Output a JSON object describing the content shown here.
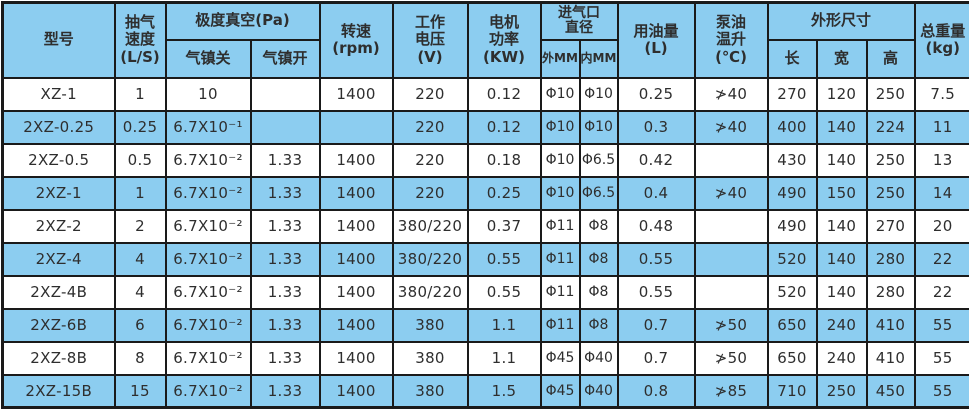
{
  "colors": {
    "row_alt_blue": "#8ccdf0",
    "row_white": "#ffffff",
    "grid_border": "#1a1a1a",
    "text": "#2e2e2e"
  },
  "chart_data": {
    "type": "table",
    "title": "",
    "header": {
      "model": "型号",
      "speed": "抽气\n速度\n(L/S)",
      "vacuum_group": "极度真空(Pa)",
      "gas_ballast_closed": "气镇关",
      "gas_ballast_open": "气镇开",
      "rpm": "转速\n(rpm)",
      "voltage": "工作\n电压\n(V)",
      "power": "电机\n功率\n(KW)",
      "inlet_group": "进气口\n直径",
      "inlet_outer": "外MM",
      "inlet_inner": "内MM",
      "oil": "用油量\n(L)",
      "oil_temp": "泵油\n温升\n(℃)",
      "dims_group": "外形尺寸",
      "dim_length": "长",
      "dim_width": "宽",
      "dim_height": "高",
      "weight": "总重量\n(kg)"
    },
    "columns": [
      "型号",
      "抽气速度(L/S)",
      "极度真空(Pa) 气镇关",
      "极度真空(Pa) 气镇开",
      "转速(rpm)",
      "工作电压(V)",
      "电机功率(KW)",
      "进气口直径 外MM",
      "进气口直径 内MM",
      "用油量(L)",
      "泵油温升(℃)",
      "外形尺寸 长",
      "外形尺寸 宽",
      "外形尺寸 高",
      "总重量(kg)"
    ],
    "rows": [
      [
        "XZ-1",
        "1",
        "10",
        "",
        "1400",
        "220",
        "0.12",
        "Φ10",
        "Φ10",
        "0.25",
        "≯40",
        "270",
        "120",
        "250",
        "7.5"
      ],
      [
        "2XZ-0.25",
        "0.25",
        "6.7X10⁻¹",
        "",
        "",
        "220",
        "0.12",
        "Φ10",
        "Φ10",
        "0.3",
        "≯40",
        "400",
        "140",
        "224",
        "11"
      ],
      [
        "2XZ-0.5",
        "0.5",
        "6.7X10⁻²",
        "1.33",
        "1400",
        "220",
        "0.18",
        "Φ10",
        "Φ6.5",
        "0.42",
        "",
        "430",
        "140",
        "250",
        "13"
      ],
      [
        "2XZ-1",
        "1",
        "6.7X10⁻²",
        "1.33",
        "1400",
        "220",
        "0.25",
        "Φ10",
        "Φ6.5",
        "0.4",
        "≯40",
        "490",
        "150",
        "250",
        "14"
      ],
      [
        "2XZ-2",
        "2",
        "6.7X10⁻²",
        "1.33",
        "1400",
        "380/220",
        "0.37",
        "Φ11",
        "Φ8",
        "0.48",
        "",
        "490",
        "140",
        "270",
        "20"
      ],
      [
        "2XZ-4",
        "4",
        "6.7X10⁻²",
        "1.33",
        "1400",
        "380/220",
        "0.55",
        "Φ11",
        "Φ8",
        "0.55",
        "",
        "520",
        "140",
        "280",
        "22"
      ],
      [
        "2XZ-4B",
        "4",
        "6.7X10⁻²",
        "1.33",
        "1400",
        "380/220",
        "0.55",
        "Φ11",
        "Φ8",
        "0.55",
        "",
        "520",
        "140",
        "280",
        "22"
      ],
      [
        "2XZ-6B",
        "6",
        "6.7X10⁻²",
        "1.33",
        "1400",
        "380",
        "1.1",
        "Φ11",
        "Φ8",
        "0.7",
        "≯50",
        "650",
        "240",
        "410",
        "55"
      ],
      [
        "2XZ-8B",
        "8",
        "6.7X10⁻²",
        "1.33",
        "1400",
        "380",
        "1.1",
        "Φ45",
        "Φ40",
        "0.7",
        "≯50",
        "650",
        "240",
        "410",
        "55"
      ],
      [
        "2XZ-15B",
        "15",
        "6.7X10⁻²",
        "1.33",
        "1400",
        "380",
        "1.5",
        "Φ45",
        "Φ40",
        "0.8",
        "≯85",
        "710",
        "250",
        "450",
        "55"
      ]
    ],
    "row_cell_names": [
      "model",
      "speed",
      "vacuum-gas-closed",
      "vacuum-gas-open",
      "rpm",
      "voltage",
      "power",
      "inlet-outer",
      "inlet-inner",
      "oil",
      "oil-temp",
      "length",
      "width",
      "height",
      "weight"
    ],
    "layout_hints": {
      "striping": "header and alternate rows light blue, others white",
      "grid": "on"
    }
  }
}
